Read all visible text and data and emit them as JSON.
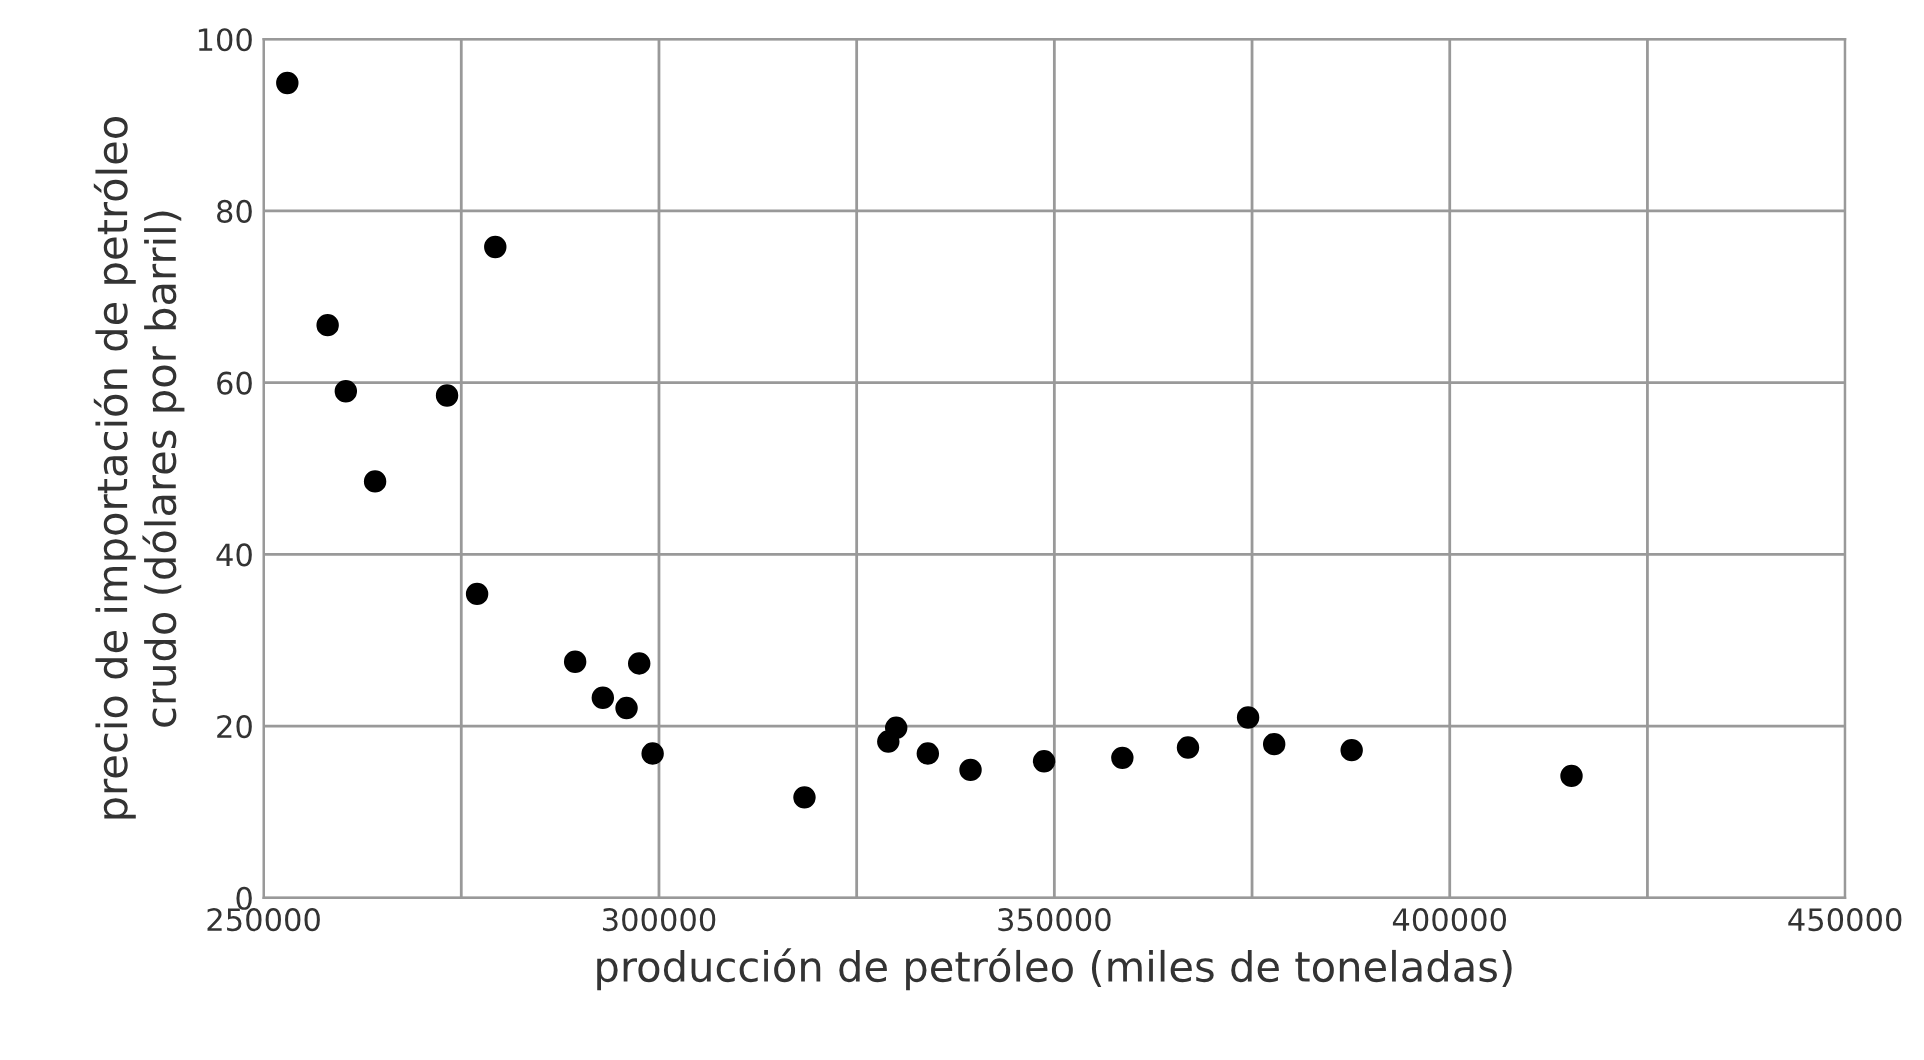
{
  "chart_data": {
    "type": "scatter",
    "xlabel": "producción de petróleo (miles de toneladas)",
    "ylabel": "precio de importación de petróleo\ncrudo (dólares por barril)",
    "x": [
      253000,
      258100,
      260400,
      264100,
      273200,
      279300,
      277000,
      289400,
      292900,
      295900,
      297500,
      299200,
      318400,
      329000,
      330000,
      334000,
      339400,
      348700,
      358600,
      366900,
      374500,
      377800,
      387600,
      415400
    ],
    "series": [
      {
        "color": "#000000",
        "values": [
          94.9,
          66.7,
          59.0,
          48.5,
          58.5,
          75.8,
          35.4,
          27.5,
          23.3,
          22.1,
          27.3,
          16.8,
          11.7,
          18.2,
          19.8,
          16.8,
          14.9,
          15.9,
          16.3,
          17.5,
          21.0,
          17.9,
          17.2,
          14.2
        ]
      }
    ],
    "xlim": [
      250000,
      450000
    ],
    "xticks": [
      250000,
      {
        "value": 275000,
        "label": null
      },
      300000,
      {
        "value": 325000,
        "label": null
      },
      350000,
      {
        "value": 375000,
        "label": null
      },
      400000,
      {
        "value": 425000,
        "label": null
      },
      450000
    ],
    "ylim": [
      0,
      100
    ],
    "yticks": [
      0,
      20,
      40,
      60,
      80,
      100
    ],
    "grid": true,
    "marker": "circle",
    "legend": false
  }
}
